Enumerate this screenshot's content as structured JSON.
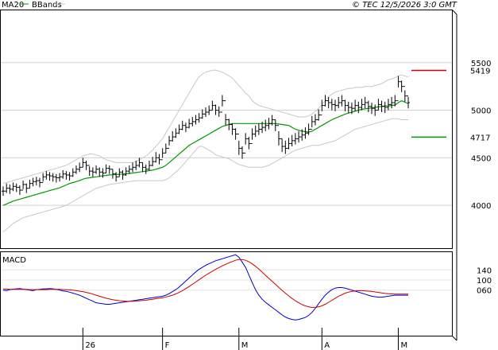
{
  "header": {
    "legend_ma": "MA20",
    "legend_bb": "BBands",
    "copyright": "© TEC 12/5/2026 3:0 GMT"
  },
  "colors": {
    "ma": "#009900",
    "bbands": "#c8c8c8",
    "ohlc": "#000000",
    "resistance": "#cc0000",
    "support": "#009900",
    "macd": "#0000cc",
    "signal": "#cc0000",
    "grid": "#d0d0d0",
    "border": "#000000"
  },
  "chart_data": [
    {
      "type": "ohlc",
      "title": "",
      "xlabel": "",
      "ylabel": "",
      "x_tick_labels": [
        "26",
        "F",
        "M",
        "A",
        "M"
      ],
      "x_tick_index": [
        24,
        48,
        71,
        96,
        119
      ],
      "y_ticks": [
        4000,
        4500,
        5000,
        5500
      ],
      "ylim": [
        3550,
        6050
      ],
      "grid": true,
      "levels": [
        {
          "name": "resistance",
          "value": 5419,
          "label": "5419"
        },
        {
          "name": "support",
          "value": 4717,
          "label": "4717"
        }
      ],
      "close": [
        4150,
        4180,
        4170,
        4200,
        4190,
        4160,
        4220,
        4180,
        4230,
        4250,
        4260,
        4240,
        4300,
        4320,
        4310,
        4300,
        4290,
        4300,
        4330,
        4320,
        4310,
        4350,
        4380,
        4400,
        4450,
        4420,
        4360,
        4350,
        4380,
        4350,
        4340,
        4390,
        4380,
        4330,
        4300,
        4350,
        4320,
        4360,
        4380,
        4400,
        4420,
        4450,
        4400,
        4380,
        4420,
        4460,
        4500,
        4480,
        4550,
        4600,
        4680,
        4720,
        4760,
        4800,
        4840,
        4820,
        4860,
        4880,
        4900,
        4920,
        4960,
        4980,
        5000,
        5050,
        5000,
        4980,
        5100,
        4900,
        4850,
        4800,
        4750,
        4600,
        4550,
        4700,
        4650,
        4750,
        4780,
        4800,
        4820,
        4840,
        4860,
        4900,
        4840,
        4700,
        4620,
        4600,
        4650,
        4680,
        4700,
        4720,
        4740,
        4760,
        4800,
        4880,
        4900,
        4950,
        5050,
        5100,
        5080,
        5060,
        5050,
        5080,
        5100,
        5050,
        5030,
        5020,
        5050,
        5030,
        5060,
        5080,
        5040,
        5020,
        5000,
        5060,
        5040,
        5030,
        5060,
        5080,
        5100,
        5300,
        5250,
        5150,
        5080
      ],
      "high": [
        4200,
        4230,
        4220,
        4240,
        4230,
        4210,
        4260,
        4230,
        4270,
        4290,
        4300,
        4290,
        4340,
        4360,
        4350,
        4340,
        4330,
        4340,
        4370,
        4360,
        4350,
        4390,
        4420,
        4450,
        4500,
        4470,
        4410,
        4400,
        4420,
        4400,
        4390,
        4430,
        4420,
        4380,
        4350,
        4390,
        4370,
        4400,
        4420,
        4450,
        4470,
        4500,
        4450,
        4430,
        4470,
        4510,
        4560,
        4540,
        4600,
        4650,
        4730,
        4780,
        4810,
        4850,
        4890,
        4870,
        4910,
        4930,
        4950,
        4970,
        5010,
        5030,
        5050,
        5100,
        5060,
        5040,
        5160,
        4960,
        4910,
        4860,
        4810,
        4680,
        4620,
        4760,
        4720,
        4810,
        4840,
        4860,
        4880,
        4900,
        4920,
        4950,
        4900,
        4780,
        4700,
        4680,
        4710,
        4740,
        4760,
        4780,
        4800,
        4820,
        4860,
        4940,
        4960,
        5010,
        5110,
        5160,
        5140,
        5120,
        5110,
        5140,
        5160,
        5110,
        5090,
        5080,
        5110,
        5090,
        5120,
        5140,
        5100,
        5080,
        5060,
        5120,
        5100,
        5090,
        5120,
        5140,
        5160,
        5360,
        5310,
        5210,
        5140
      ],
      "low": [
        4100,
        4130,
        4120,
        4150,
        4140,
        4110,
        4170,
        4130,
        4180,
        4200,
        4210,
        4190,
        4250,
        4270,
        4260,
        4250,
        4240,
        4250,
        4280,
        4270,
        4260,
        4300,
        4330,
        4350,
        4400,
        4370,
        4310,
        4300,
        4330,
        4300,
        4290,
        4340,
        4330,
        4280,
        4250,
        4300,
        4270,
        4310,
        4330,
        4350,
        4370,
        4400,
        4350,
        4330,
        4370,
        4410,
        4450,
        4430,
        4500,
        4550,
        4630,
        4670,
        4710,
        4750,
        4790,
        4770,
        4810,
        4830,
        4850,
        4870,
        4910,
        4930,
        4950,
        5000,
        4950,
        4930,
        5040,
        4840,
        4790,
        4740,
        4690,
        4530,
        4490,
        4640,
        4590,
        4690,
        4720,
        4740,
        4760,
        4780,
        4800,
        4840,
        4780,
        4630,
        4560,
        4540,
        4590,
        4620,
        4640,
        4660,
        4680,
        4700,
        4740,
        4820,
        4840,
        4890,
        4990,
        5040,
        5020,
        5000,
        4990,
        5020,
        5040,
        4990,
        4970,
        4960,
        4990,
        4970,
        5000,
        5020,
        4980,
        4960,
        4940,
        5000,
        4980,
        4970,
        5000,
        5020,
        5040,
        5240,
        5190,
        5090,
        5020
      ],
      "series": [
        {
          "name": "MA20",
          "values": [
            4000,
            4015,
            4030,
            4045,
            4055,
            4065,
            4075,
            4085,
            4095,
            4105,
            4115,
            4125,
            4135,
            4145,
            4155,
            4165,
            4175,
            4185,
            4200,
            4215,
            4230,
            4240,
            4250,
            4260,
            4275,
            4285,
            4290,
            4295,
            4300,
            4305,
            4310,
            4315,
            4320,
            4322,
            4325,
            4327,
            4330,
            4333,
            4336,
            4340,
            4345,
            4350,
            4355,
            4360,
            4365,
            4370,
            4380,
            4390,
            4400,
            4420,
            4450,
            4480,
            4510,
            4540,
            4570,
            4600,
            4630,
            4650,
            4670,
            4690,
            4710,
            4730,
            4750,
            4770,
            4790,
            4810,
            4830,
            4840,
            4850,
            4860,
            4860,
            4860,
            4860,
            4860,
            4860,
            4860,
            4860,
            4860,
            4860,
            4860,
            4860,
            4860,
            4860,
            4855,
            4850,
            4845,
            4840,
            4820,
            4800,
            4790,
            4780,
            4775,
            4770,
            4780,
            4800,
            4820,
            4840,
            4860,
            4880,
            4900,
            4915,
            4930,
            4945,
            4960,
            4970,
            4980,
            4990,
            5000,
            5010,
            5015,
            5020,
            5025,
            5030,
            5035,
            5040,
            5045,
            5045,
            5050,
            5055,
            5080,
            5100,
            5085,
            5070
          ]
        },
        {
          "name": "BBands upper",
          "values": [
            4230,
            4240,
            4250,
            4260,
            4270,
            4280,
            4290,
            4300,
            4310,
            4320,
            4330,
            4340,
            4350,
            4360,
            4370,
            4380,
            4390,
            4400,
            4410,
            4420,
            4440,
            4460,
            4480,
            4500,
            4520,
            4530,
            4540,
            4540,
            4530,
            4520,
            4500,
            4480,
            4470,
            4460,
            4450,
            4450,
            4450,
            4450,
            4450,
            4450,
            4460,
            4480,
            4500,
            4520,
            4550,
            4580,
            4620,
            4660,
            4700,
            4760,
            4820,
            4880,
            4940,
            5000,
            5060,
            5120,
            5180,
            5240,
            5300,
            5350,
            5380,
            5400,
            5410,
            5420,
            5420,
            5410,
            5400,
            5380,
            5360,
            5340,
            5300,
            5260,
            5220,
            5180,
            5150,
            5100,
            5070,
            5050,
            5040,
            5030,
            5020,
            5010,
            5000,
            4990,
            4980,
            4970,
            4960,
            4950,
            4940,
            4930,
            4930,
            4930,
            4940,
            4960,
            4990,
            5020,
            5060,
            5100,
            5140,
            5170,
            5190,
            5200,
            5210,
            5220,
            5230,
            5230,
            5240,
            5240,
            5240,
            5250,
            5250,
            5250,
            5260,
            5270,
            5280,
            5300,
            5320,
            5330,
            5340,
            5360,
            5370,
            5360,
            5350
          ]
        },
        {
          "name": "BBands lower",
          "values": [
            3720,
            3750,
            3780,
            3810,
            3830,
            3850,
            3870,
            3880,
            3890,
            3900,
            3910,
            3920,
            3930,
            3940,
            3950,
            3960,
            3970,
            3980,
            3990,
            4000,
            4020,
            4040,
            4060,
            4080,
            4100,
            4120,
            4140,
            4160,
            4180,
            4190,
            4200,
            4210,
            4220,
            4225,
            4230,
            4235,
            4240,
            4245,
            4250,
            4255,
            4260,
            4260,
            4260,
            4260,
            4260,
            4260,
            4260,
            4260,
            4260,
            4270,
            4290,
            4320,
            4350,
            4380,
            4420,
            4460,
            4500,
            4540,
            4580,
            4620,
            4620,
            4600,
            4580,
            4560,
            4530,
            4520,
            4510,
            4500,
            4490,
            4470,
            4450,
            4430,
            4420,
            4410,
            4400,
            4400,
            4400,
            4400,
            4400,
            4410,
            4420,
            4440,
            4460,
            4480,
            4500,
            4520,
            4540,
            4560,
            4580,
            4590,
            4600,
            4610,
            4620,
            4630,
            4630,
            4630,
            4640,
            4650,
            4660,
            4670,
            4680,
            4700,
            4720,
            4740,
            4760,
            4780,
            4800,
            4810,
            4820,
            4830,
            4840,
            4850,
            4860,
            4870,
            4880,
            4890,
            4900,
            4910,
            4910,
            4910,
            4900,
            4900,
            4900
          ]
        }
      ]
    },
    {
      "type": "line",
      "title": "MACD",
      "xlabel": "",
      "ylabel": "",
      "y_tick_labels": [
        "140",
        "100",
        "060"
      ],
      "y_ticks": [
        140,
        100,
        60
      ],
      "ylim": [
        -120,
        210
      ],
      "series": [
        {
          "name": "MACD",
          "values": [
            60,
            58,
            62,
            64,
            65,
            66,
            64,
            62,
            60,
            58,
            62,
            63,
            65,
            65,
            66,
            65,
            63,
            60,
            57,
            55,
            52,
            48,
            44,
            40,
            34,
            28,
            22,
            16,
            10,
            8,
            6,
            4,
            4,
            6,
            8,
            10,
            12,
            14,
            16,
            18,
            20,
            22,
            24,
            26,
            28,
            30,
            32,
            34,
            36,
            40,
            46,
            54,
            62,
            72,
            84,
            96,
            108,
            120,
            132,
            142,
            150,
            158,
            164,
            170,
            176,
            180,
            184,
            188,
            192,
            196,
            200,
            190,
            170,
            150,
            120,
            90,
            62,
            40,
            24,
            12,
            2,
            -8,
            -18,
            -28,
            -38,
            -46,
            -52,
            -56,
            -58,
            -56,
            -52,
            -48,
            -40,
            -28,
            -12,
            6,
            24,
            40,
            52,
            62,
            68,
            70,
            70,
            68,
            64,
            60,
            56,
            52,
            48,
            44,
            40,
            36,
            34,
            32,
            32,
            34,
            36,
            38,
            40,
            40,
            40,
            40,
            40
          ]
        },
        {
          "name": "Signal",
          "values": [
            65,
            64,
            63,
            63,
            63,
            63,
            63,
            63,
            62,
            62,
            62,
            62,
            62,
            62,
            63,
            63,
            63,
            63,
            62,
            62,
            61,
            60,
            58,
            56,
            54,
            51,
            48,
            44,
            40,
            36,
            32,
            28,
            25,
            22,
            20,
            18,
            17,
            16,
            16,
            16,
            17,
            18,
            19,
            20,
            22,
            24,
            26,
            28,
            30,
            33,
            36,
            40,
            45,
            51,
            58,
            66,
            74,
            83,
            92,
            101,
            110,
            119,
            127,
            135,
            142,
            149,
            156,
            162,
            168,
            173,
            178,
            181,
            181,
            178,
            172,
            164,
            154,
            143,
            131,
            119,
            107,
            95,
            83,
            71,
            59,
            48,
            37,
            27,
            18,
            10,
            3,
            -2,
            -6,
            -8,
            -8,
            -6,
            -2,
            4,
            12,
            20,
            28,
            36,
            42,
            48,
            52,
            55,
            57,
            58,
            58,
            57,
            56,
            55,
            53,
            51,
            49,
            47,
            46,
            45,
            44,
            44,
            44,
            44,
            44
          ]
        }
      ]
    }
  ]
}
